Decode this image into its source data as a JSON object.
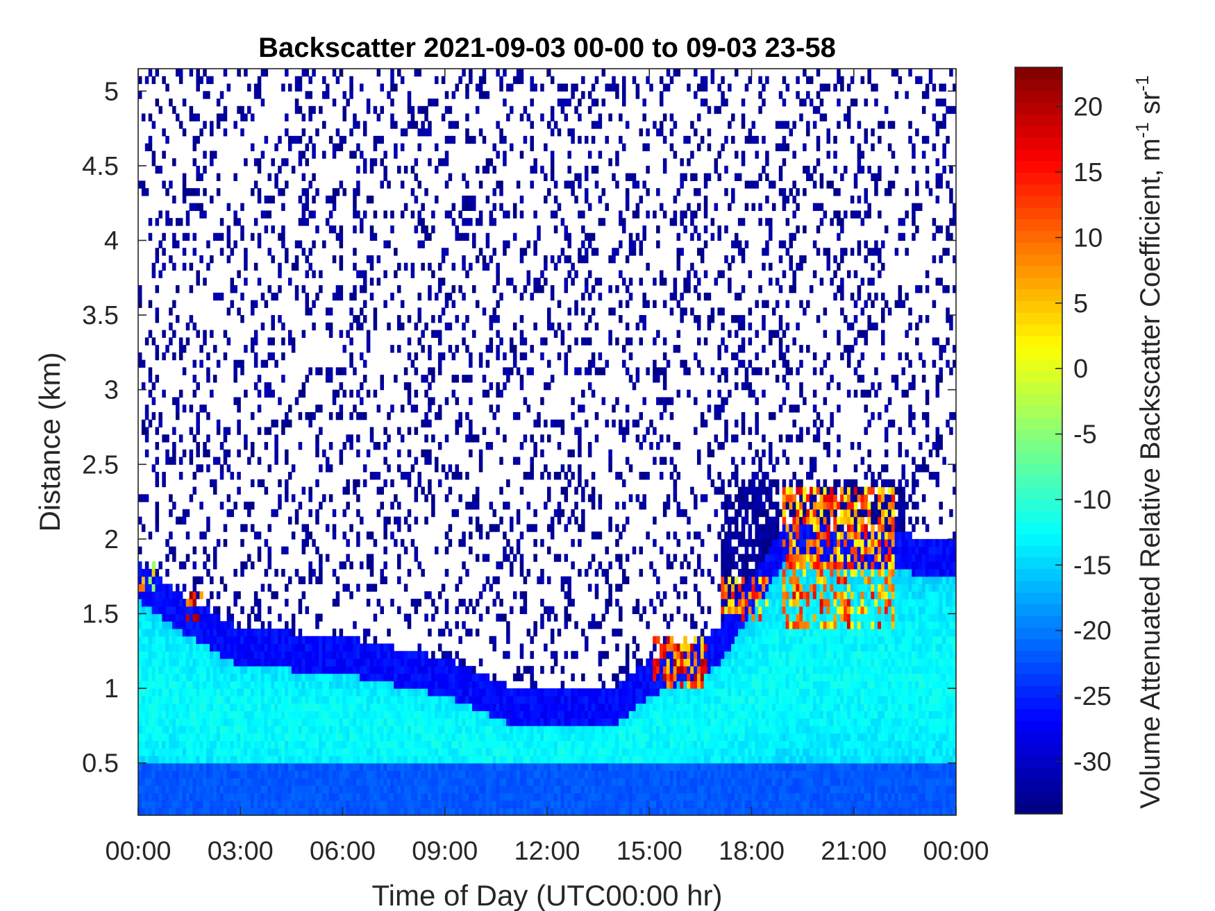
{
  "chart_data": {
    "type": "heatmap",
    "title": "Backscatter 2021-09-03 00-00 to 09-03 23-58",
    "xlabel": "Time of Day (UTC00:00 hr)",
    "ylabel": "Distance (km)",
    "colorbar_label_main": "Volume Attenuated Relative Backscatter Coefficient, m",
    "colorbar_label_sup1": "-1",
    "colorbar_label_mid": " sr",
    "colorbar_label_sup2": "-1",
    "colormap": "jet",
    "xlim": [
      0,
      24
    ],
    "ylim": [
      0.15,
      5.15
    ],
    "clim": [
      -34,
      23
    ],
    "x_ticks": [
      0,
      3,
      6,
      9,
      12,
      15,
      18,
      21,
      24
    ],
    "x_tick_labels": [
      "00:00",
      "03:00",
      "06:00",
      "09:00",
      "12:00",
      "15:00",
      "18:00",
      "21:00",
      "00:00"
    ],
    "y_ticks": [
      0.5,
      1,
      1.5,
      2,
      2.5,
      3,
      3.5,
      4,
      4.5,
      5
    ],
    "y_tick_labels": [
      "0.5",
      "1",
      "1.5",
      "2",
      "2.5",
      "3",
      "3.5",
      "4",
      "4.5",
      "5"
    ],
    "colorbar_ticks": [
      20,
      15,
      10,
      5,
      0,
      -5,
      -10,
      -15,
      -20,
      -25,
      -30
    ],
    "colorbar_tick_labels": [
      "20",
      "15",
      "10",
      "5",
      "0",
      "-5",
      "-10",
      "-15",
      "-20",
      "-25",
      "-30"
    ],
    "boundary_layer_top_km": [
      {
        "time_hr": 0,
        "km": 1.85
      },
      {
        "time_hr": 1.5,
        "km": 1.6
      },
      {
        "time_hr": 3,
        "km": 1.4
      },
      {
        "time_hr": 6,
        "km": 1.35
      },
      {
        "time_hr": 9,
        "km": 1.2
      },
      {
        "time_hr": 11,
        "km": 1.0
      },
      {
        "time_hr": 14,
        "km": 1.0
      },
      {
        "time_hr": 15,
        "km": 1.2
      },
      {
        "time_hr": 17,
        "km": 1.4
      },
      {
        "time_hr": 19,
        "km": 2.1
      },
      {
        "time_hr": 24,
        "km": 2.0
      }
    ],
    "high_backscatter_regions": [
      {
        "time_hr": [
          0,
          0.5
        ],
        "km": [
          1.65,
          1.85
        ],
        "value": 5
      },
      {
        "time_hr": [
          1.4,
          1.9
        ],
        "km": [
          1.45,
          1.65
        ],
        "value": 18
      },
      {
        "time_hr": [
          15.1,
          16.7
        ],
        "km": [
          1.0,
          1.35
        ],
        "value": 15
      },
      {
        "time_hr": [
          17.1,
          18.5
        ],
        "km": [
          1.45,
          1.75
        ],
        "value": 10
      },
      {
        "time_hr": [
          18.9,
          22.2
        ],
        "km": [
          1.4,
          2.35
        ],
        "value": 12
      }
    ]
  }
}
